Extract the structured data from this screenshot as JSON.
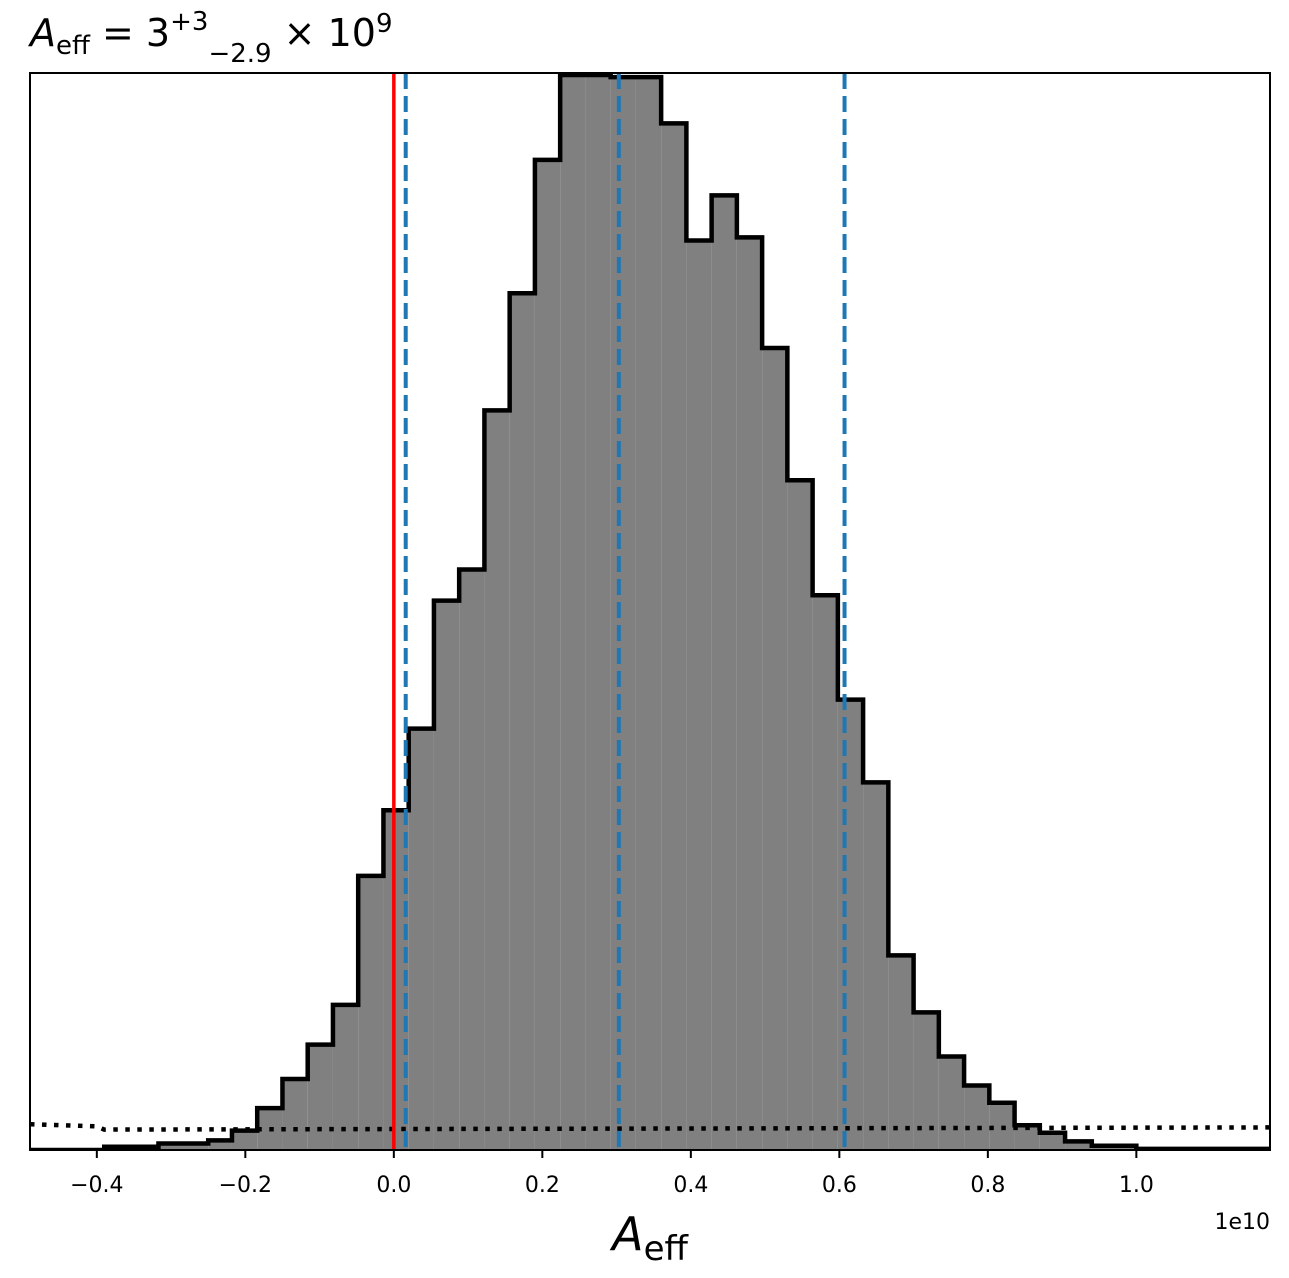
{
  "chart_data": {
    "type": "histogram",
    "title": {
      "symbol": "A",
      "symbol_sub": "eff",
      "eq": " = 3",
      "sup": "+3",
      "sub": "−2.9",
      "tail": " × 10",
      "exp": "9"
    },
    "xlabel": {
      "symbol": "A",
      "sub": "eff"
    },
    "x_offset_label": "1e10",
    "xlim": [
      -0.49,
      1.18
    ],
    "ylim": [
      0,
      1.0
    ],
    "x_ticks": [
      -0.4,
      -0.2,
      0.0,
      0.2,
      0.4,
      0.6,
      0.8,
      1.0
    ],
    "x_tick_labels": [
      "−0.4",
      "−0.2",
      "0.0",
      "0.2",
      "0.4",
      "0.6",
      "0.8",
      "1.0"
    ],
    "y_ticks_shown": false,
    "bins": {
      "edges": [
        -0.49,
        -0.39,
        -0.317,
        -0.25,
        -0.218,
        -0.184,
        -0.15,
        -0.116,
        -0.082,
        -0.048,
        -0.014,
        0.02,
        0.054,
        0.088,
        0.122,
        0.156,
        0.19,
        0.224,
        0.258,
        0.292,
        0.326,
        0.36,
        0.394,
        0.428,
        0.462,
        0.496,
        0.53,
        0.564,
        0.598,
        0.632,
        0.666,
        0.7,
        0.734,
        0.768,
        0.802,
        0.836,
        0.87,
        0.904,
        0.94,
        1.0,
        1.18
      ],
      "heights": [
        0.0,
        0.003,
        0.006,
        0.009,
        0.018,
        0.039,
        0.066,
        0.098,
        0.135,
        0.255,
        0.316,
        0.392,
        0.511,
        0.54,
        0.688,
        0.797,
        0.921,
        1.0,
        1.0,
        0.998,
        0.998,
        0.955,
        0.846,
        0.888,
        0.849,
        0.746,
        0.623,
        0.516,
        0.419,
        0.342,
        0.181,
        0.128,
        0.087,
        0.06,
        0.044,
        0.023,
        0.016,
        0.008,
        0.004,
        0.001
      ]
    },
    "colors": {
      "fill": "#808080",
      "edge": "#000000",
      "truth_line": "#ff0000",
      "quantile_lines": "#1f77b4",
      "prior_line": "#000000"
    },
    "vertical_lines": {
      "truth": 0.0,
      "quantiles": [
        0.016,
        0.303,
        0.607
      ]
    },
    "prior_curve": {
      "x": [
        -0.49,
        -0.4,
        -0.39,
        1.18
      ],
      "y": [
        0.024,
        0.022,
        0.019,
        0.021
      ]
    },
    "grid": false
  }
}
